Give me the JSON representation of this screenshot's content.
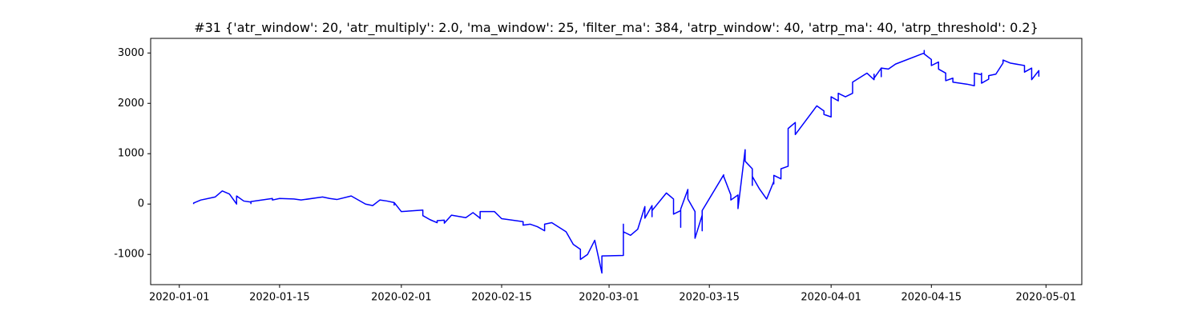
{
  "chart_data": {
    "type": "line",
    "title": "#31 {'atr_window': 20, 'atr_multiply': 2.0, 'ma_window': 25, 'filter_ma': 384, 'atrp_window': 40, 'atrp_ma': 40, 'atrp_threshold': 0.2}",
    "color": "#0000ff",
    "x": [
      "2020-01-03",
      "2020-01-03",
      "2020-01-04",
      "2020-01-06",
      "2020-01-07",
      "2020-01-08",
      "2020-01-09",
      "2020-01-09",
      "2020-01-10",
      "2020-01-11",
      "2020-01-11",
      "2020-01-11",
      "2020-01-14",
      "2020-01-14",
      "2020-01-15",
      "2020-01-17",
      "2020-01-18",
      "2020-01-21",
      "2020-01-22",
      "2020-01-23",
      "2020-01-25",
      "2020-01-27",
      "2020-01-28",
      "2020-01-29",
      "2020-01-30",
      "2020-01-31",
      "2020-01-31",
      "2020-01-31",
      "2020-02-01",
      "2020-02-04",
      "2020-02-04",
      "2020-02-05",
      "2020-02-06",
      "2020-02-06",
      "2020-02-07",
      "2020-02-07",
      "2020-02-08",
      "2020-02-10",
      "2020-02-11",
      "2020-02-12",
      "2020-02-12",
      "2020-02-12",
      "2020-02-14",
      "2020-02-15",
      "2020-02-18",
      "2020-02-18",
      "2020-02-19",
      "2020-02-20",
      "2020-02-21",
      "2020-02-21",
      "2020-02-22",
      "2020-02-24",
      "2020-02-25",
      "2020-02-26",
      "2020-02-26",
      "2020-02-27",
      "2020-02-28",
      "2020-02-29",
      "2020-02-29",
      "2020-03-03",
      "2020-03-03",
      "2020-03-03",
      "2020-03-04",
      "2020-03-05",
      "2020-03-06",
      "2020-03-06",
      "2020-03-07",
      "2020-03-07",
      "2020-03-07",
      "2020-03-09",
      "2020-03-10",
      "2020-03-10",
      "2020-03-11",
      "2020-03-11",
      "2020-03-11",
      "2020-03-12",
      "2020-03-12",
      "2020-03-13",
      "2020-03-13",
      "2020-03-14",
      "2020-03-14",
      "2020-03-14",
      "2020-03-17",
      "2020-03-17",
      "2020-03-18",
      "2020-03-18",
      "2020-03-19",
      "2020-03-19",
      "2020-03-20",
      "2020-03-20",
      "2020-03-21",
      "2020-03-21",
      "2020-03-21",
      "2020-03-22",
      "2020-03-23",
      "2020-03-24",
      "2020-03-24",
      "2020-03-24",
      "2020-03-25",
      "2020-03-25",
      "2020-03-26",
      "2020-03-26",
      "2020-03-27",
      "2020-03-27",
      "2020-03-30",
      "2020-03-31",
      "2020-03-31",
      "2020-04-01",
      "2020-04-01",
      "2020-04-02",
      "2020-04-02",
      "2020-04-02",
      "2020-04-03",
      "2020-04-04",
      "2020-04-04",
      "2020-04-06",
      "2020-04-07",
      "2020-04-07",
      "2020-04-07",
      "2020-04-08",
      "2020-04-08",
      "2020-04-08",
      "2020-04-09",
      "2020-04-10",
      "2020-04-14",
      "2020-04-14",
      "2020-04-14",
      "2020-04-15",
      "2020-04-15",
      "2020-04-16",
      "2020-04-16",
      "2020-04-17",
      "2020-04-17",
      "2020-04-18",
      "2020-04-18",
      "2020-04-20",
      "2020-04-21",
      "2020-04-21",
      "2020-04-22",
      "2020-04-22",
      "2020-04-22",
      "2020-04-23",
      "2020-04-23",
      "2020-04-24",
      "2020-04-25",
      "2020-04-25",
      "2020-04-26",
      "2020-04-28",
      "2020-04-28",
      "2020-04-29",
      "2020-04-29",
      "2020-04-30",
      "2020-04-30",
      "2020-04-30"
    ],
    "values": [
      0,
      20,
      80,
      140,
      260,
      200,
      0,
      160,
      60,
      40,
      10,
      50,
      110,
      80,
      110,
      100,
      80,
      140,
      110,
      90,
      160,
      0,
      -30,
      80,
      60,
      30,
      -20,
      30,
      -150,
      -120,
      -230,
      -310,
      -370,
      -330,
      -320,
      -380,
      -220,
      -270,
      -170,
      -280,
      -290,
      -150,
      -150,
      -290,
      -350,
      -420,
      -400,
      -450,
      -530,
      -400,
      -370,
      -550,
      -800,
      -900,
      -1100,
      -1000,
      -720,
      -1370,
      -1030,
      -1020,
      -400,
      -550,
      -620,
      -500,
      -50,
      -280,
      -30,
      -250,
      -130,
      220,
      100,
      -200,
      -130,
      -460,
      -100,
      290,
      100,
      -150,
      -680,
      -220,
      -530,
      -130,
      580,
      550,
      180,
      80,
      180,
      -90,
      1080,
      850,
      700,
      370,
      550,
      300,
      100,
      450,
      400,
      570,
      500,
      700,
      750,
      1500,
      1620,
      1380,
      1950,
      1850,
      1780,
      1730,
      2130,
      2050,
      2150,
      2200,
      2130,
      2200,
      2420,
      2600,
      2470,
      2580,
      2500,
      2700,
      2530,
      2700,
      2680,
      2780,
      3000,
      3050,
      2980,
      2870,
      2750,
      2820,
      2680,
      2600,
      2450,
      2500,
      2420,
      2380,
      2350,
      2600,
      2570,
      2600,
      2400,
      2480,
      2550,
      2580,
      2800,
      2860,
      2800,
      2750,
      2620,
      2700,
      2470,
      2650,
      2620,
      2530
    ],
    "xlim": [
      "2019-12-28",
      "2020-05-06"
    ],
    "xticks": [
      "2020-01-01",
      "2020-01-15",
      "2020-02-01",
      "2020-02-15",
      "2020-03-01",
      "2020-03-15",
      "2020-04-01",
      "2020-04-15",
      "2020-05-01"
    ],
    "ylim": [
      -1600,
      3290
    ],
    "yticks": [
      -1000,
      0,
      1000,
      2000,
      3000
    ],
    "grid": false
  }
}
